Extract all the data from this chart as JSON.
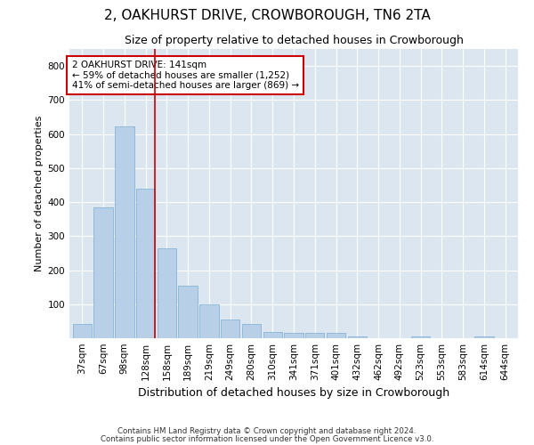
{
  "title": "2, OAKHURST DRIVE, CROWBOROUGH, TN6 2TA",
  "subtitle": "Size of property relative to detached houses in Crowborough",
  "xlabel": "Distribution of detached houses by size in Crowborough",
  "ylabel": "Number of detached properties",
  "categories": [
    "37sqm",
    "67sqm",
    "98sqm",
    "128sqm",
    "158sqm",
    "189sqm",
    "219sqm",
    "249sqm",
    "280sqm",
    "310sqm",
    "341sqm",
    "371sqm",
    "401sqm",
    "432sqm",
    "462sqm",
    "492sqm",
    "523sqm",
    "553sqm",
    "583sqm",
    "614sqm",
    "644sqm"
  ],
  "values": [
    42,
    385,
    622,
    440,
    265,
    155,
    100,
    55,
    42,
    18,
    15,
    15,
    15,
    4,
    0,
    0,
    4,
    0,
    0,
    4,
    0
  ],
  "bar_color": "#b8cfe8",
  "bar_edge_color": "#7baed4",
  "background_color": "#dce6f1",
  "grid_color": "#ffffff",
  "vline_color": "#cc0000",
  "annotation_text": "2 OAKHURST DRIVE: 141sqm\n← 59% of detached houses are smaller (1,252)\n41% of semi-detached houses are larger (869) →",
  "annotation_box_color": "#ffffff",
  "annotation_box_edge": "#cc0000",
  "footnote1": "Contains HM Land Registry data © Crown copyright and database right 2024.",
  "footnote2": "Contains public sector information licensed under the Open Government Licence v3.0.",
  "ylim": [
    0,
    850
  ],
  "yticks": [
    0,
    100,
    200,
    300,
    400,
    500,
    600,
    700,
    800
  ],
  "title_fontsize": 11,
  "subtitle_fontsize": 9,
  "ylabel_fontsize": 8,
  "xlabel_fontsize": 9,
  "tick_fontsize": 7.5,
  "annot_fontsize": 7.5
}
